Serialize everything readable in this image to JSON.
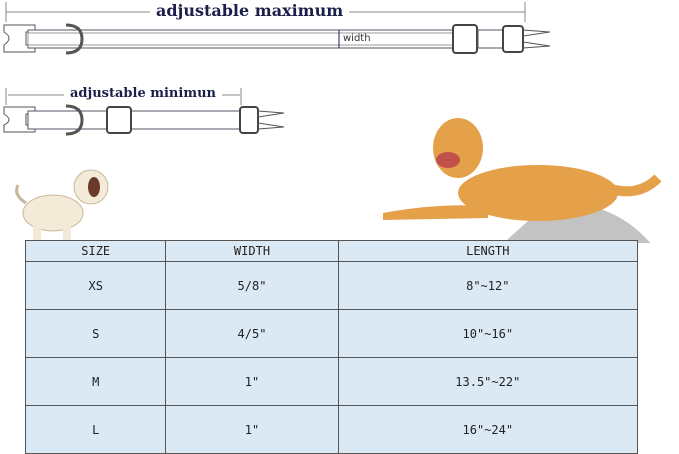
{
  "collar_max": {
    "label": "adjustable maximum",
    "width_label": "width"
  },
  "collar_min": {
    "label": "adjustable minimun"
  },
  "size_table": {
    "headers": [
      "SIZE",
      "WIDTH",
      "LENGTH"
    ],
    "rows": [
      [
        "XS",
        "5/8\"",
        "8\"~12\""
      ],
      [
        "S",
        "4/5\"",
        "10\"~16\""
      ],
      [
        "M",
        "1\"",
        "13.5\"~22\""
      ],
      [
        "L",
        "1\"",
        "16\"~24\""
      ]
    ]
  },
  "colors": {
    "table_bg": "#dbe9f5",
    "label_text": "#1c1f4a",
    "dog": "#e5a04a"
  }
}
